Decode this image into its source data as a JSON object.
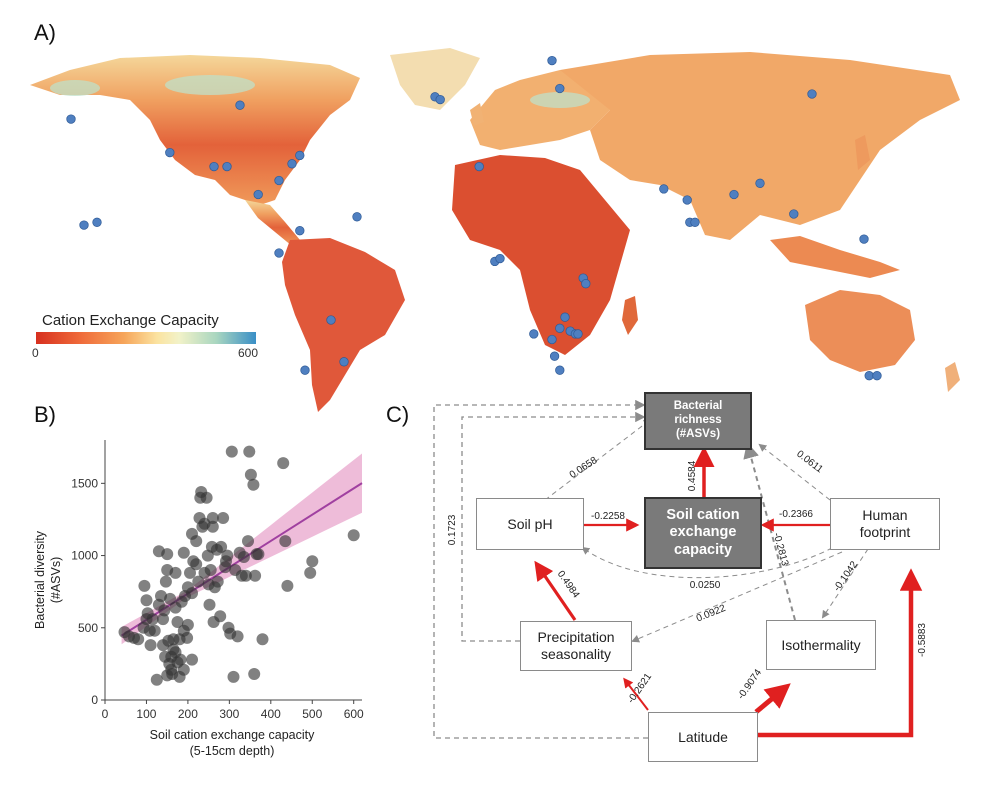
{
  "panels": {
    "a": "A)",
    "b": "B)",
    "c": "C)"
  },
  "map": {
    "legend_title": "Cation Exchange Capacity",
    "legend_min": "0",
    "legend_max": "600",
    "sample_color": "#4f7fc0",
    "land_color": "#ee8d5a",
    "samples": [
      [
        -160,
        57
      ],
      [
        -95,
        62
      ],
      [
        -150,
        20
      ],
      [
        -155,
        19
      ],
      [
        -122,
        45
      ],
      [
        -105,
        40
      ],
      [
        -100,
        40
      ],
      [
        -80,
        35
      ],
      [
        -75,
        41
      ],
      [
        -72,
        44
      ],
      [
        -88,
        30
      ],
      [
        -72,
        17
      ],
      [
        -80,
        9
      ],
      [
        -60,
        -15
      ],
      [
        -55,
        -30
      ],
      [
        -70,
        -33
      ],
      [
        -50,
        22
      ],
      [
        -20,
        65
      ],
      [
        -18,
        64
      ],
      [
        -3,
        40
      ],
      [
        25,
        78
      ],
      [
        28,
        68
      ],
      [
        125,
        66
      ],
      [
        68,
        32
      ],
      [
        77,
        28
      ],
      [
        78,
        20
      ],
      [
        80,
        20
      ],
      [
        95,
        30
      ],
      [
        105,
        34
      ],
      [
        118,
        23
      ],
      [
        145,
        14
      ],
      [
        3,
        6
      ],
      [
        5,
        7
      ],
      [
        37,
        0
      ],
      [
        38,
        -2
      ],
      [
        30,
        -14
      ],
      [
        28,
        -18
      ],
      [
        32,
        -19
      ],
      [
        34,
        -20
      ],
      [
        35,
        -20
      ],
      [
        25,
        -22
      ],
      [
        26,
        -28
      ],
      [
        28,
        -33
      ],
      [
        18,
        -20
      ],
      [
        147,
        -35
      ],
      [
        150,
        -35
      ]
    ]
  },
  "chart_data": {
    "type": "scatter",
    "title": "",
    "xlabel": "Soil cation exchange capacity",
    "xlabel2": "(5-15cm depth)",
    "ylabel": "Bacterial diversity",
    "ylabel2": "(#ASVs)",
    "xlim": [
      0,
      620
    ],
    "ylim": [
      0,
      1800
    ],
    "xticks": [
      0,
      100,
      200,
      300,
      400,
      500,
      600
    ],
    "yticks": [
      0,
      500,
      1000,
      1500
    ],
    "point_color": "#333333",
    "line_color": "#a040a0",
    "band_color": "#e8a6cc",
    "fit": {
      "intercept": 373,
      "slope": 1.82,
      "band": [
        [
          40,
          60
        ],
        [
          200,
          24
        ],
        [
          620,
          205
        ]
      ]
    },
    "points": [
      [
        47,
        470
      ],
      [
        58,
        440
      ],
      [
        70,
        430
      ],
      [
        80,
        420
      ],
      [
        93,
        500
      ],
      [
        95,
        790
      ],
      [
        100,
        560
      ],
      [
        110,
        380
      ],
      [
        103,
        600
      ],
      [
        100,
        690
      ],
      [
        120,
        480
      ],
      [
        125,
        140
      ],
      [
        130,
        1030
      ],
      [
        135,
        720
      ],
      [
        140,
        560
      ],
      [
        143,
        620
      ],
      [
        147,
        820
      ],
      [
        150,
        1010
      ],
      [
        153,
        410
      ],
      [
        157,
        700
      ],
      [
        160,
        300
      ],
      [
        165,
        420
      ],
      [
        162,
        180
      ],
      [
        170,
        640
      ],
      [
        175,
        540
      ],
      [
        180,
        160
      ],
      [
        182,
        280
      ],
      [
        185,
        680
      ],
      [
        190,
        1020
      ],
      [
        193,
        720
      ],
      [
        200,
        520
      ],
      [
        205,
        880
      ],
      [
        210,
        740
      ],
      [
        213,
        960
      ],
      [
        220,
        1100
      ],
      [
        225,
        820
      ],
      [
        228,
        1260
      ],
      [
        232,
        1440
      ],
      [
        235,
        1200
      ],
      [
        240,
        880
      ],
      [
        245,
        1400
      ],
      [
        248,
        1000
      ],
      [
        252,
        660
      ],
      [
        255,
        900
      ],
      [
        258,
        1060
      ],
      [
        262,
        540
      ],
      [
        265,
        780
      ],
      [
        270,
        1040
      ],
      [
        272,
        820
      ],
      [
        278,
        580
      ],
      [
        285,
        1260
      ],
      [
        290,
        920
      ],
      [
        292,
        960
      ],
      [
        295,
        1000
      ],
      [
        298,
        500
      ],
      [
        302,
        460
      ],
      [
        306,
        1720
      ],
      [
        310,
        160
      ],
      [
        314,
        900
      ],
      [
        320,
        440
      ],
      [
        325,
        1020
      ],
      [
        330,
        860
      ],
      [
        335,
        990
      ],
      [
        340,
        860
      ],
      [
        345,
        1100
      ],
      [
        348,
        1720
      ],
      [
        352,
        1560
      ],
      [
        358,
        1490
      ],
      [
        360,
        180
      ],
      [
        362,
        860
      ],
      [
        366,
        1010
      ],
      [
        370,
        1010
      ],
      [
        380,
        420
      ],
      [
        430,
        1640
      ],
      [
        435,
        1100
      ],
      [
        440,
        790
      ],
      [
        495,
        880
      ],
      [
        500,
        960
      ],
      [
        600,
        1140
      ],
      [
        140,
        380
      ],
      [
        145,
        300
      ],
      [
        150,
        170
      ],
      [
        155,
        250
      ],
      [
        160,
        210
      ],
      [
        165,
        350
      ],
      [
        170,
        330
      ],
      [
        175,
        260
      ],
      [
        180,
        420
      ],
      [
        190,
        480
      ],
      [
        198,
        430
      ],
      [
        210,
        1150
      ],
      [
        230,
        1400
      ],
      [
        240,
        1220
      ],
      [
        260,
        1260
      ],
      [
        220,
        940
      ],
      [
        250,
        800
      ],
      [
        280,
        1060
      ],
      [
        200,
        780
      ],
      [
        170,
        880
      ],
      [
        130,
        660
      ],
      [
        115,
        560
      ],
      [
        108,
        480
      ],
      [
        190,
        210
      ],
      [
        210,
        280
      ],
      [
        150,
        900
      ],
      [
        260,
        1200
      ]
    ]
  },
  "path": {
    "arrow_red": "#e02020",
    "arrow_grey": "#8c8c8c",
    "nodes": {
      "richness": "Bacterial\nrichness\n(#ASVs)",
      "soil_ph": "Soil pH",
      "cec": "Soil cation\nexchange\ncapacity",
      "human": "Human\nfootprint",
      "precip": "Precipitation\nseasonality",
      "iso": "Isothermality",
      "lat": "Latitude"
    },
    "coef": {
      "ph_rich": "0.0658",
      "cec_rich": "0.4584",
      "hum_rich": "0.0611",
      "ph_cec": "-0.2258",
      "hum_cec": "-0.2366",
      "iso_rich": "-0.2813",
      "precip_rich": "0.1723",
      "hum_ph": "0.0250",
      "hum_iso": "-0.1042",
      "hum_precip": "0.0922",
      "precip_ph": "0.4984",
      "lat_precip": "-0.2621",
      "lat_iso": "-0.9074",
      "lat_hum": "-0.5883"
    }
  }
}
